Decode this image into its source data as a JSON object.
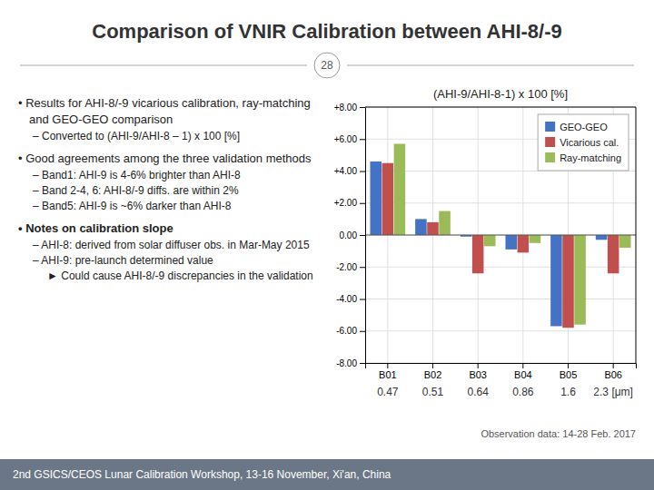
{
  "title": "Comparison of VNIR Calibration between AHI-8/-9",
  "slide_number": "28",
  "bullets": [
    "• Results for AHI-8/-9 vicarious calibration, ray-matching and GEO-GEO comparison",
    "– Converted to (AHI-9/AHI-8 – 1) x 100 [%]",
    "• Good agreements among the three validation methods",
    "– Band1: AHI-9 is 4-6% brighter than AHI-8",
    "– Band 2-4, 6: AHI-8/-9 diffs. are within 2%",
    "– Band5: AHI-9 is ~6% darker than AHI-8",
    "• Notes on calibration slope",
    "– AHI-8: derived from solar diffuser obs. in Mar-May 2015",
    "– AHI-9: pre-launch determined value",
    "► Could cause AHI-8/-9 discrepancies in the validation"
  ],
  "footer": "2nd GSICS/CEOS Lunar Calibration Workshop, 13-16 November, Xi'an, China",
  "chart_data": {
    "type": "bar",
    "title": "(AHI-9/AHI-8-1) x 100 [%]",
    "categories": [
      "B01",
      "B02",
      "B03",
      "B04",
      "B05",
      "B06"
    ],
    "series": [
      {
        "name": "GEO-GEO",
        "color": "#4472c4",
        "values": [
          4.6,
          1.0,
          -0.1,
          -0.9,
          -5.7,
          -0.3
        ]
      },
      {
        "name": "Vicarious cal.",
        "color": "#c0504d",
        "values": [
          4.5,
          0.8,
          -2.4,
          -1.1,
          -5.8,
          -2.4
        ]
      },
      {
        "name": "Ray-matching",
        "color": "#9bbb59",
        "values": [
          5.7,
          1.5,
          -0.7,
          -0.5,
          -5.6,
          -0.8
        ]
      }
    ],
    "ylim": [
      -8.0,
      8.0
    ],
    "yticks": [
      {
        "value": -8.0,
        "label": "-8.00"
      },
      {
        "value": -6.0,
        "label": "-6.00"
      },
      {
        "value": -4.0,
        "label": "-4.00"
      },
      {
        "value": -2.0,
        "label": "-2.00"
      },
      {
        "value": 0.0,
        "label": "0.00"
      },
      {
        "value": 2.0,
        "label": "+2.00"
      },
      {
        "value": 4.0,
        "label": "+4.00"
      },
      {
        "value": 6.0,
        "label": "+6.00"
      },
      {
        "value": 8.0,
        "label": "+8.00"
      }
    ],
    "grid": true,
    "legend": "upper right",
    "annotations": [
      {
        "text": "0.47",
        "x": "B01"
      },
      {
        "text": "0.51",
        "x": "B02"
      },
      {
        "text": "0.64",
        "x": "B03"
      },
      {
        "text": "0.86",
        "x": "B04"
      },
      {
        "text": "1.6",
        "x": "B05"
      },
      {
        "text": "2.3 [μm]",
        "x": "B06"
      },
      {
        "text": "Observation data: 14-28 Feb. 2017"
      }
    ]
  }
}
